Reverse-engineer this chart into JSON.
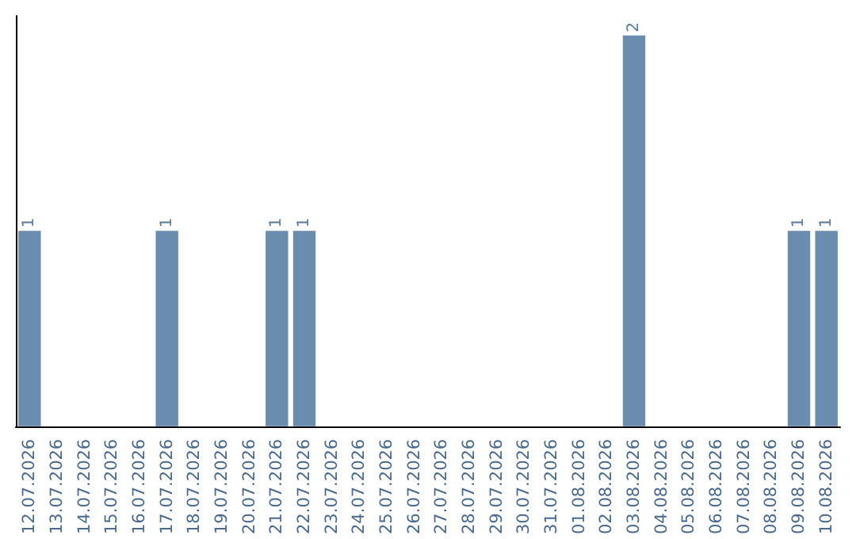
{
  "chart_data": {
    "type": "bar",
    "categories": [
      "12.07.2026",
      "13.07.2026",
      "14.07.2026",
      "15.07.2026",
      "16.07.2026",
      "17.07.2026",
      "18.07.2026",
      "19.07.2026",
      "20.07.2026",
      "21.07.2026",
      "22.07.2026",
      "23.07.2026",
      "24.07.2026",
      "25.07.2026",
      "26.07.2026",
      "27.07.2026",
      "28.07.2026",
      "29.07.2026",
      "30.07.2026",
      "31.07.2026",
      "01.08.2026",
      "02.08.2026",
      "03.08.2026",
      "04.08.2026",
      "05.08.2026",
      "06.08.2026",
      "07.08.2026",
      "08.08.2026",
      "09.08.2026",
      "10.08.2026"
    ],
    "values": [
      1,
      0,
      0,
      0,
      0,
      1,
      0,
      0,
      0,
      1,
      1,
      0,
      0,
      0,
      0,
      0,
      0,
      0,
      0,
      0,
      0,
      0,
      2,
      0,
      0,
      0,
      0,
      0,
      1,
      1
    ],
    "value_labels": [
      "1",
      null,
      null,
      null,
      null,
      "1",
      null,
      null,
      null,
      "1",
      "1",
      null,
      null,
      null,
      null,
      null,
      null,
      null,
      null,
      null,
      null,
      null,
      "2",
      null,
      null,
      null,
      null,
      null,
      "1",
      "1"
    ],
    "color": "#6a8caf",
    "ylim": [
      0,
      2.1
    ],
    "tick_labels": "x",
    "grid": false
  }
}
